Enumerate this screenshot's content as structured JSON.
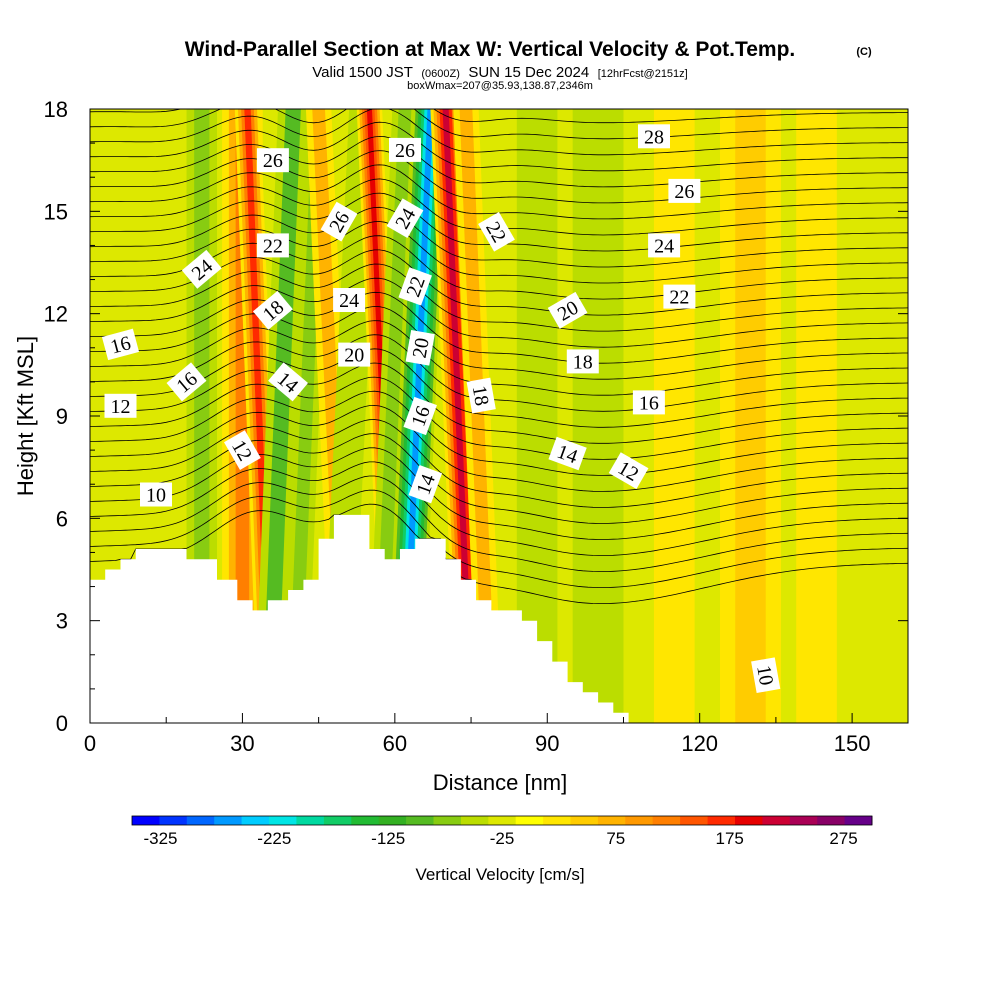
{
  "chart_data": {
    "type": "heatmap",
    "title": "Wind-Parallel Section at Max W: Vertical Velocity & Pot.Temp.",
    "copyright": "(C)",
    "subtitle_line1": {
      "prefix": "Valid 1500 JST",
      "utc": "(0600Z)",
      "date": "SUN 15 Dec 2024",
      "forecast": "[12hrFcst@2151z]"
    },
    "subtitle_line2": "boxWmax=207@35.93,138.87,2346m",
    "xlabel": "Distance [nm]",
    "ylabel": "Height [Kft MSL]",
    "xlim": [
      0,
      161
    ],
    "ylim": [
      0,
      18
    ],
    "x_ticks": [
      "0",
      "30",
      "60",
      "90",
      "120",
      "150"
    ],
    "y_ticks": [
      "0",
      "3",
      "6",
      "9",
      "12",
      "15",
      "18"
    ],
    "colorbar": {
      "label": "Vertical Velocity [cm/s]",
      "range": [
        -350,
        300
      ],
      "tick_labels": [
        "-325",
        "-225",
        "-125",
        "-25",
        "75",
        "175",
        "275"
      ],
      "colors": [
        "#0000ff",
        "#0033ff",
        "#0066ff",
        "#0099ff",
        "#00ccff",
        "#00e5e5",
        "#00d9a0",
        "#11cc66",
        "#22bb33",
        "#33b022",
        "#55bb22",
        "#88cc11",
        "#bbdd00",
        "#dde800",
        "#ffff00",
        "#ffe600",
        "#ffcc00",
        "#ffb300",
        "#ff9900",
        "#ff7f00",
        "#ff5500",
        "#ff2a00",
        "#e60000",
        "#cc0033",
        "#aa0055",
        "#880066",
        "#660088"
      ]
    },
    "terrain_profile": [
      [
        0,
        4.2
      ],
      [
        3,
        4.2
      ],
      [
        3,
        4.5
      ],
      [
        6,
        4.5
      ],
      [
        6,
        4.8
      ],
      [
        9,
        4.8
      ],
      [
        9,
        5.1
      ],
      [
        19,
        5.1
      ],
      [
        19,
        4.8
      ],
      [
        25,
        4.8
      ],
      [
        25,
        4.2
      ],
      [
        29,
        4.2
      ],
      [
        29,
        3.6
      ],
      [
        32,
        3.6
      ],
      [
        32,
        3.3
      ],
      [
        35,
        3.3
      ],
      [
        35,
        3.6
      ],
      [
        39,
        3.6
      ],
      [
        39,
        3.9
      ],
      [
        42,
        3.9
      ],
      [
        42,
        4.2
      ],
      [
        45,
        4.2
      ],
      [
        45,
        5.4
      ],
      [
        48,
        5.4
      ],
      [
        48,
        6.1
      ],
      [
        55,
        6.1
      ],
      [
        55,
        5.1
      ],
      [
        58,
        5.1
      ],
      [
        58,
        4.8
      ],
      [
        61,
        4.8
      ],
      [
        61,
        5.1
      ],
      [
        64,
        5.1
      ],
      [
        64,
        5.4
      ],
      [
        70,
        5.4
      ],
      [
        70,
        4.8
      ],
      [
        73,
        4.8
      ],
      [
        73,
        4.2
      ],
      [
        76,
        4.2
      ],
      [
        76,
        3.6
      ],
      [
        79,
        3.6
      ],
      [
        79,
        3.3
      ],
      [
        85,
        3.3
      ],
      [
        85,
        3.0
      ],
      [
        88,
        3.0
      ],
      [
        88,
        2.4
      ],
      [
        91,
        2.4
      ],
      [
        91,
        1.8
      ],
      [
        94,
        1.8
      ],
      [
        94,
        1.2
      ],
      [
        97,
        1.2
      ],
      [
        97,
        0.9
      ],
      [
        100,
        0.9
      ],
      [
        100,
        0.6
      ],
      [
        103,
        0.6
      ],
      [
        103,
        0.3
      ],
      [
        106,
        0.3
      ],
      [
        106,
        0.0
      ]
    ],
    "velocity_features": [
      {
        "x": 22,
        "width": 3,
        "w": -60
      },
      {
        "x": 30,
        "width": 4,
        "w": 130
      },
      {
        "x": 33,
        "width": 2.5,
        "w": 180
      },
      {
        "x": 38,
        "width": 3,
        "w": -90
      },
      {
        "x": 43,
        "width": 2.5,
        "w": -70
      },
      {
        "x": 47,
        "width": 2.5,
        "w": 90
      },
      {
        "x": 52,
        "width": 3,
        "w": -40
      },
      {
        "x": 57,
        "width": 2.5,
        "w": 210
      },
      {
        "x": 60,
        "width": 2.5,
        "w": -60
      },
      {
        "x": 65,
        "width": 3.5,
        "w": -260
      },
      {
        "x": 72,
        "width": 3,
        "w": 230
      },
      {
        "x": 76,
        "width": 2.5,
        "w": 80
      },
      {
        "x": 88,
        "width": 4,
        "w": -40
      },
      {
        "x": 100,
        "width": 5,
        "w": -30
      },
      {
        "x": 115,
        "width": 4,
        "w": 25
      },
      {
        "x": 130,
        "width": 6,
        "w": 70
      },
      {
        "x": 143,
        "width": 4,
        "w": 45
      }
    ],
    "isentrope_labels": [
      {
        "value": "26",
        "x": 36,
        "y": 16.5,
        "angle": 0
      },
      {
        "value": "26",
        "x": 62,
        "y": 16.8,
        "angle": 0
      },
      {
        "value": "28",
        "x": 111,
        "y": 17.2,
        "angle": 0
      },
      {
        "value": "26",
        "x": 117,
        "y": 15.6,
        "angle": 0
      },
      {
        "value": "26",
        "x": 49,
        "y": 14.7,
        "angle": 60
      },
      {
        "value": "24",
        "x": 62,
        "y": 14.8,
        "angle": 60
      },
      {
        "value": "22",
        "x": 80,
        "y": 14.4,
        "angle": -60
      },
      {
        "value": "24",
        "x": 113,
        "y": 14.0,
        "angle": 0
      },
      {
        "value": "22",
        "x": 36,
        "y": 14.0,
        "angle": 0
      },
      {
        "value": "24",
        "x": 22,
        "y": 13.3,
        "angle": 40
      },
      {
        "value": "22",
        "x": 64,
        "y": 12.8,
        "angle": 70
      },
      {
        "value": "24",
        "x": 51,
        "y": 12.4,
        "angle": 0
      },
      {
        "value": "18",
        "x": 36,
        "y": 12.1,
        "angle": 40
      },
      {
        "value": "20",
        "x": 94,
        "y": 12.1,
        "angle": 30
      },
      {
        "value": "22",
        "x": 116,
        "y": 12.5,
        "angle": 0
      },
      {
        "value": "16",
        "x": 6,
        "y": 11.1,
        "angle": 15
      },
      {
        "value": "20",
        "x": 52,
        "y": 10.8,
        "angle": 0
      },
      {
        "value": "20",
        "x": 65,
        "y": 11.0,
        "angle": 80
      },
      {
        "value": "16",
        "x": 19,
        "y": 10.0,
        "angle": 40
      },
      {
        "value": "14",
        "x": 39,
        "y": 10.0,
        "angle": -40
      },
      {
        "value": "18",
        "x": 97,
        "y": 10.6,
        "angle": 0
      },
      {
        "value": "18",
        "x": 77,
        "y": 9.6,
        "angle": -80
      },
      {
        "value": "12",
        "x": 6,
        "y": 9.3,
        "angle": 0
      },
      {
        "value": "16",
        "x": 110,
        "y": 9.4,
        "angle": 0
      },
      {
        "value": "16",
        "x": 65,
        "y": 9.0,
        "angle": 70
      },
      {
        "value": "12",
        "x": 30,
        "y": 8.0,
        "angle": -60
      },
      {
        "value": "14",
        "x": 94,
        "y": 7.9,
        "angle": -20
      },
      {
        "value": "12",
        "x": 106,
        "y": 7.4,
        "angle": -30
      },
      {
        "value": "14",
        "x": 66,
        "y": 7.0,
        "angle": 70
      },
      {
        "value": "10",
        "x": 13,
        "y": 6.7,
        "angle": 0
      },
      {
        "value": "10",
        "x": 133,
        "y": 1.4,
        "angle": -80
      }
    ]
  }
}
